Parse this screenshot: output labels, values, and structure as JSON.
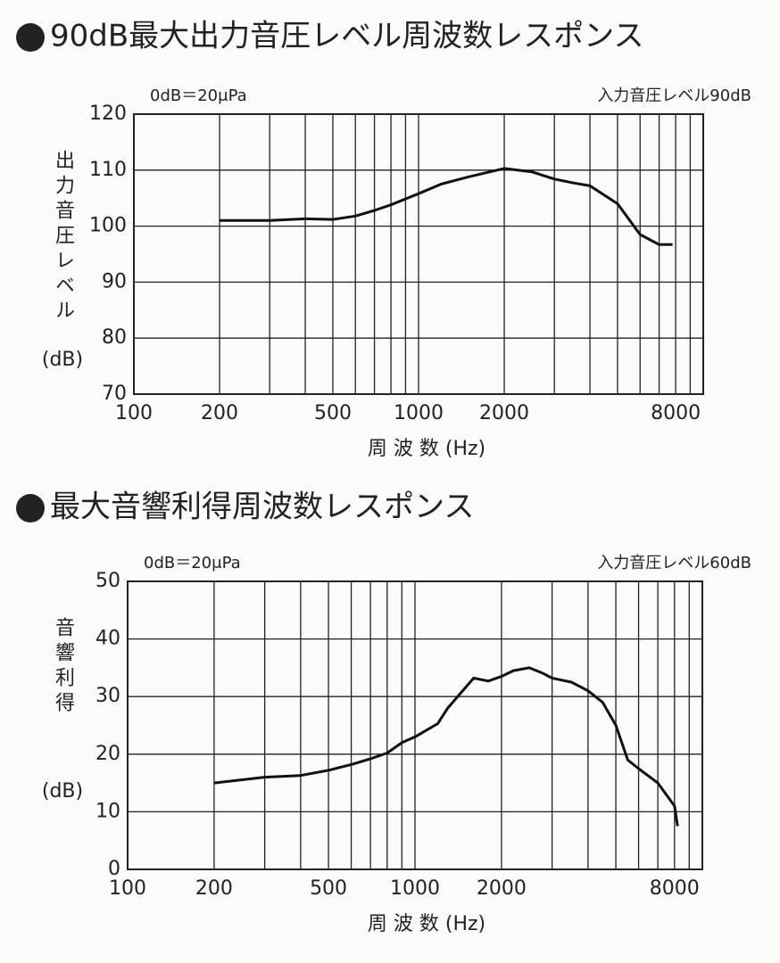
{
  "chart_data": [
    {
      "type": "line",
      "title": "90dB最大出力音圧レベル周波数レスポンス",
      "annotations": [
        "0dB＝20μPa",
        "入力音圧レベル90dB"
      ],
      "ylabel": "出力音圧レベル",
      "yunit": "(dB)",
      "xlabel": "周 波 数 (Hz)",
      "x": [
        200,
        300,
        400,
        500,
        600,
        700,
        800,
        1000,
        1200,
        1500,
        2000,
        2500,
        3000,
        3500,
        4000,
        5000,
        6000,
        7000,
        7800
      ],
      "values": [
        101,
        101,
        101.3,
        101.2,
        101.8,
        102.8,
        103.8,
        105.8,
        107.5,
        108.8,
        110.3,
        109.7,
        108.4,
        107.7,
        107.2,
        104,
        98.5,
        96.7,
        96.7
      ],
      "color": "#111111",
      "xscale": "log",
      "grid": true,
      "xlim": [
        100,
        10000
      ],
      "xticks": [
        100,
        200,
        500,
        1000,
        2000,
        8000
      ],
      "x_minor_grid": [
        300,
        400,
        600,
        700,
        800,
        900,
        3000,
        4000,
        5000,
        6000,
        7000,
        9000
      ],
      "ylim": [
        70,
        120
      ],
      "yticks": [
        70,
        80,
        90,
        100,
        110,
        120
      ]
    },
    {
      "type": "line",
      "title": "最大音響利得周波数レスポンス",
      "annotations": [
        "0dB＝20μPa",
        "入力音圧レベル60dB"
      ],
      "ylabel": "音響利得",
      "yunit": "(dB)",
      "xlabel": "周 波 数 (Hz)",
      "x": [
        200,
        300,
        400,
        500,
        600,
        700,
        800,
        900,
        1000,
        1200,
        1300,
        1600,
        1800,
        2000,
        2200,
        2500,
        2800,
        3000,
        3500,
        4000,
        4500,
        5000,
        5500,
        6000,
        7000,
        8000,
        8200
      ],
      "values": [
        15,
        16,
        16.3,
        17.2,
        18.2,
        19.2,
        20.2,
        22,
        23,
        25.3,
        28,
        33.2,
        32.7,
        33.5,
        34.5,
        35,
        34,
        33.2,
        32.5,
        31,
        29,
        25,
        19,
        17.5,
        15,
        11,
        7.5
      ],
      "color": "#111111",
      "xscale": "log",
      "grid": true,
      "xlim": [
        100,
        10000
      ],
      "xticks": [
        100,
        200,
        500,
        1000,
        2000,
        8000
      ],
      "x_minor_grid": [
        300,
        400,
        600,
        700,
        800,
        900,
        3000,
        4000,
        5000,
        6000,
        7000,
        9000
      ],
      "ylim": [
        0,
        50
      ],
      "yticks": [
        0,
        10,
        20,
        30,
        40,
        50
      ]
    }
  ]
}
